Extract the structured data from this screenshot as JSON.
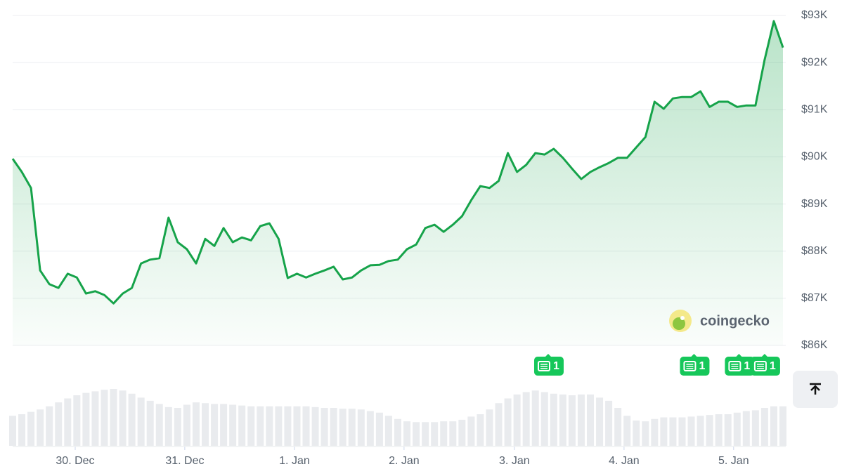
{
  "chart_data": {
    "type": "line",
    "series": [
      {
        "color": "#16a34a",
        "values": [
          89960,
          89680,
          89340,
          87590,
          87300,
          87220,
          87520,
          87440,
          87100,
          87150,
          87070,
          86890,
          87100,
          87220,
          87740,
          87820,
          87850,
          88710,
          88190,
          88040,
          87740,
          88260,
          88110,
          88490,
          88190,
          88290,
          88230,
          88530,
          88590,
          88260,
          87430,
          87520,
          87440,
          87520,
          87590,
          87670,
          87400,
          87440,
          87590,
          87700,
          87710,
          87790,
          87820,
          88040,
          88140,
          88490,
          88560,
          88410,
          88560,
          88740,
          89080,
          89380,
          89340,
          89490,
          90080,
          89680,
          89830,
          90080,
          90050,
          90170,
          89980,
          89750,
          89530,
          89680,
          89780,
          89870,
          89980,
          89980,
          90200,
          90420,
          91170,
          91020,
          91240,
          91270,
          91270,
          91390,
          91060,
          91170,
          91170,
          91060,
          91090,
          91090,
          92060,
          92880,
          92320
        ]
      }
    ],
    "volume": {
      "color": "#e9ebee",
      "ylim": [
        0,
        80
      ],
      "values": [
        38,
        40,
        43,
        46,
        50,
        55,
        60,
        64,
        67,
        69,
        71,
        72,
        70,
        66,
        61,
        57,
        53,
        49,
        48,
        52,
        55,
        54,
        53,
        53,
        52,
        51,
        50,
        50,
        50,
        50,
        50,
        50,
        50,
        49,
        48,
        48,
        47,
        47,
        46,
        44,
        42,
        38,
        34,
        31,
        30,
        30,
        30,
        31,
        31,
        33,
        37,
        40,
        46,
        54,
        60,
        65,
        68,
        70,
        68,
        66,
        65,
        64,
        65,
        65,
        61,
        57,
        48,
        38,
        32,
        31,
        34,
        36,
        36,
        36,
        37,
        38,
        39,
        40,
        40,
        42,
        44,
        45,
        48,
        50,
        50
      ]
    },
    "xlim": [
      0,
      84
    ],
    "xticks": [
      {
        "value": 6.82,
        "label": "30. Dec"
      },
      {
        "value": 18.77,
        "label": "31. Dec"
      },
      {
        "value": 30.73,
        "label": "1. Jan"
      },
      {
        "value": 42.68,
        "label": "2. Jan"
      },
      {
        "value": 54.71,
        "label": "3. Jan"
      },
      {
        "value": 66.67,
        "label": "4. Jan"
      },
      {
        "value": 78.62,
        "label": "5. Jan"
      }
    ],
    "ylim": [
      86000,
      93000
    ],
    "yticks": [
      {
        "value": 86000,
        "label": "$86K"
      },
      {
        "value": 87000,
        "label": "$87K"
      },
      {
        "value": 88000,
        "label": "$88K"
      },
      {
        "value": 89000,
        "label": "$89K"
      },
      {
        "value": 90000,
        "label": "$90K"
      },
      {
        "value": 91000,
        "label": "$91K"
      },
      {
        "value": 92000,
        "label": "$92K"
      },
      {
        "value": 93000,
        "label": "$93K"
      }
    ],
    "grid": true,
    "news_markers": [
      {
        "x": 58.4,
        "label": "1"
      },
      {
        "x": 74.3,
        "label": "1"
      },
      {
        "x": 79.2,
        "label": "1"
      },
      {
        "x": 82.0,
        "label": "1"
      }
    ],
    "watermark": "coingecko"
  }
}
